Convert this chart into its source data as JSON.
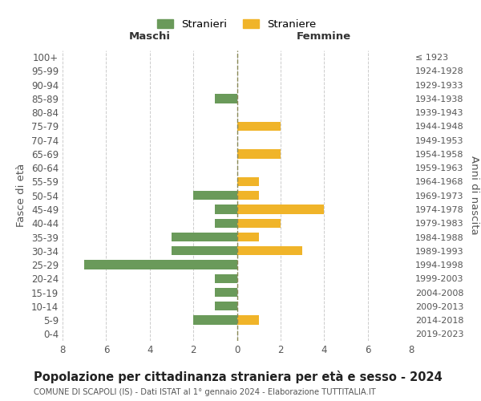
{
  "age_groups": [
    "0-4",
    "5-9",
    "10-14",
    "15-19",
    "20-24",
    "25-29",
    "30-34",
    "35-39",
    "40-44",
    "45-49",
    "50-54",
    "55-59",
    "60-64",
    "65-69",
    "70-74",
    "75-79",
    "80-84",
    "85-89",
    "90-94",
    "95-99",
    "100+"
  ],
  "birth_years": [
    "2019-2023",
    "2014-2018",
    "2009-2013",
    "2004-2008",
    "1999-2003",
    "1994-1998",
    "1989-1993",
    "1984-1988",
    "1979-1983",
    "1974-1978",
    "1969-1973",
    "1964-1968",
    "1959-1963",
    "1954-1958",
    "1949-1953",
    "1944-1948",
    "1939-1943",
    "1934-1938",
    "1929-1933",
    "1924-1928",
    "≤ 1923"
  ],
  "maschi": [
    0,
    2,
    1,
    1,
    1,
    7,
    3,
    3,
    1,
    1,
    2,
    0,
    0,
    0,
    0,
    0,
    0,
    1,
    0,
    0,
    0
  ],
  "femmine": [
    0,
    1,
    0,
    0,
    0,
    0,
    3,
    1,
    2,
    4,
    1,
    1,
    0,
    2,
    0,
    2,
    0,
    0,
    0,
    0,
    0
  ],
  "maschi_color": "#6a9a5a",
  "femmine_color": "#f0b429",
  "background_color": "#ffffff",
  "grid_color": "#cccccc",
  "xlim": 8,
  "title": "Popolazione per cittadinanza straniera per età e sesso - 2024",
  "subtitle": "COMUNE DI SCAPOLI (IS) - Dati ISTAT al 1° gennaio 2024 - Elaborazione TUTTITALIA.IT",
  "ylabel": "Fasce di età",
  "ylabel_right": "Anni di nascita",
  "xlabel_left": "Maschi",
  "xlabel_right": "Femmine",
  "legend_maschi": "Stranieri",
  "legend_femmine": "Straniere",
  "tick_fontsize": 8.5,
  "label_fontsize": 9.5,
  "title_fontsize": 10.5
}
